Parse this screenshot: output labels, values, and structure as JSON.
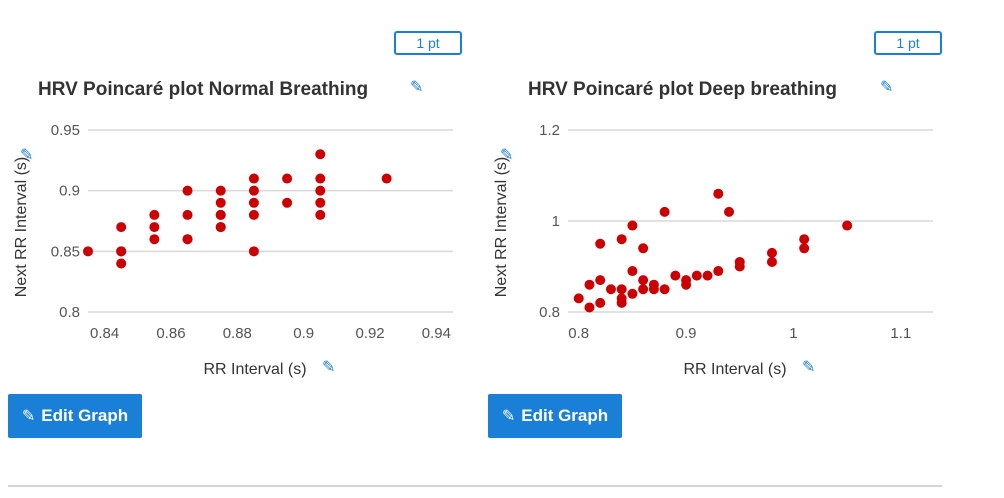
{
  "colors": {
    "accent": "#1a7fd6",
    "marker": "#cc0000",
    "grid": "#d9d9d9"
  },
  "icons": {
    "edit": "pencil-icon"
  },
  "panels": [
    {
      "points_label": "1 pt",
      "edit_label": "Edit Graph"
    },
    {
      "points_label": "1 pt",
      "edit_label": "Edit Graph"
    }
  ],
  "chart_data": [
    {
      "type": "scatter",
      "title": "HRV Poincaré plot Normal Breathing",
      "xlabel": "RR Interval (s)",
      "ylabel": "Next RR Interval (s)",
      "xlim": [
        0.835,
        0.945
      ],
      "ylim": [
        0.8,
        0.95
      ],
      "xticks": [
        0.84,
        0.86,
        0.88,
        0.9,
        0.92,
        0.94
      ],
      "xtick_labels": [
        "0.84",
        "0.86",
        "0.88",
        "0.9",
        "0.92",
        "0.94"
      ],
      "yticks": [
        0.8,
        0.85,
        0.9,
        0.95
      ],
      "ytick_labels": [
        "0.8",
        "0.85",
        "0.9",
        "0.95"
      ],
      "grid": true,
      "legend": "none",
      "points": [
        [
          0.835,
          0.85
        ],
        [
          0.845,
          0.87
        ],
        [
          0.845,
          0.85
        ],
        [
          0.845,
          0.85
        ],
        [
          0.845,
          0.84
        ],
        [
          0.855,
          0.88
        ],
        [
          0.855,
          0.87
        ],
        [
          0.855,
          0.86
        ],
        [
          0.865,
          0.9
        ],
        [
          0.865,
          0.88
        ],
        [
          0.865,
          0.86
        ],
        [
          0.865,
          0.86
        ],
        [
          0.875,
          0.9
        ],
        [
          0.875,
          0.89
        ],
        [
          0.875,
          0.88
        ],
        [
          0.875,
          0.88
        ],
        [
          0.875,
          0.87
        ],
        [
          0.875,
          0.87
        ],
        [
          0.885,
          0.91
        ],
        [
          0.885,
          0.9
        ],
        [
          0.885,
          0.89
        ],
        [
          0.885,
          0.88
        ],
        [
          0.885,
          0.85
        ],
        [
          0.895,
          0.91
        ],
        [
          0.895,
          0.89
        ],
        [
          0.905,
          0.93
        ],
        [
          0.905,
          0.91
        ],
        [
          0.905,
          0.9
        ],
        [
          0.905,
          0.89
        ],
        [
          0.905,
          0.88
        ],
        [
          0.925,
          0.91
        ]
      ]
    },
    {
      "type": "scatter",
      "title": "HRV Poincaré plot Deep breathing",
      "xlabel": "RR Interval (s)",
      "ylabel": "Next RR Interval (s)",
      "xlim": [
        0.79,
        1.13
      ],
      "ylim": [
        0.8,
        1.2
      ],
      "xticks": [
        0.8,
        0.9,
        1,
        1.1
      ],
      "xtick_labels": [
        "0.8",
        "0.9",
        "1",
        "1.1"
      ],
      "yticks": [
        0.8,
        1,
        1.2
      ],
      "ytick_labels": [
        "0.8",
        "1",
        "1.2"
      ],
      "grid": true,
      "legend": "none",
      "points": [
        [
          0.8,
          0.83
        ],
        [
          0.81,
          0.81
        ],
        [
          0.81,
          0.86
        ],
        [
          0.82,
          0.82
        ],
        [
          0.82,
          0.87
        ],
        [
          0.82,
          0.95
        ],
        [
          0.83,
          0.85
        ],
        [
          0.84,
          0.82
        ],
        [
          0.84,
          0.83
        ],
        [
          0.84,
          0.85
        ],
        [
          0.84,
          0.96
        ],
        [
          0.85,
          0.84
        ],
        [
          0.85,
          0.89
        ],
        [
          0.85,
          0.99
        ],
        [
          0.86,
          0.85
        ],
        [
          0.86,
          0.87
        ],
        [
          0.86,
          0.94
        ],
        [
          0.87,
          0.85
        ],
        [
          0.87,
          0.86
        ],
        [
          0.88,
          0.85
        ],
        [
          0.88,
          1.02
        ],
        [
          0.89,
          0.88
        ],
        [
          0.9,
          0.86
        ],
        [
          0.9,
          0.87
        ],
        [
          0.91,
          0.88
        ],
        [
          0.92,
          0.88
        ],
        [
          0.93,
          0.89
        ],
        [
          0.93,
          1.06
        ],
        [
          0.94,
          1.02
        ],
        [
          0.95,
          0.9
        ],
        [
          0.95,
          0.91
        ],
        [
          0.98,
          0.91
        ],
        [
          0.98,
          0.93
        ],
        [
          1.01,
          0.94
        ],
        [
          1.01,
          0.96
        ],
        [
          1.05,
          0.99
        ]
      ]
    }
  ]
}
